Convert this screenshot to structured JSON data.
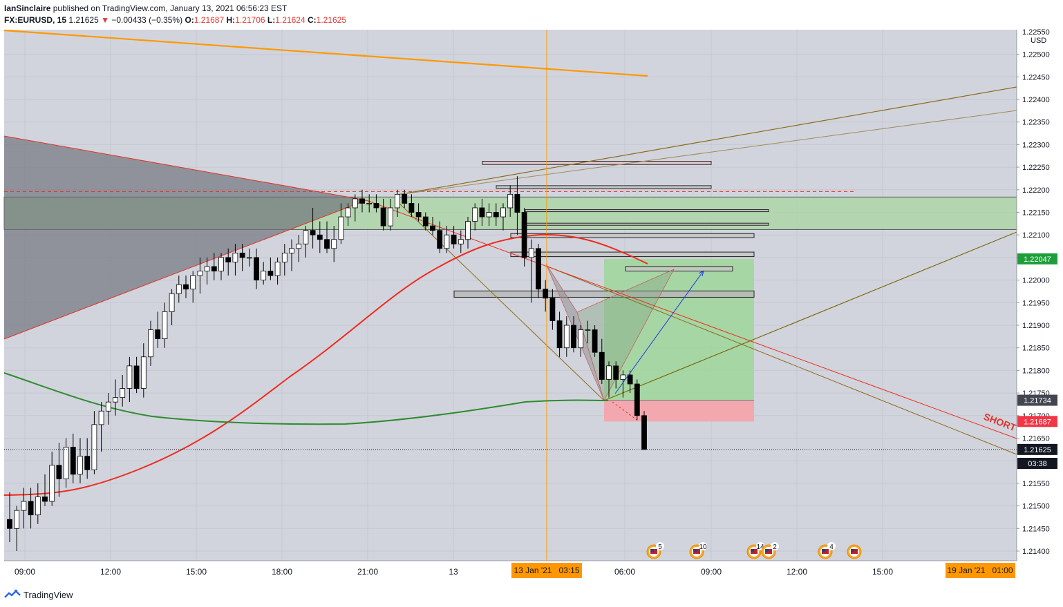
{
  "header": {
    "publisher": "IanSinclaire",
    "published_text": "published on TradingView.com, January 13, 2021 06:56:23 EST",
    "symbol": "FX:EURUSD, 15",
    "last": "1.21625",
    "change_arrow": "▼",
    "change": "−0.00433 (−0.35%)",
    "o_label": "O:",
    "o": "1.21687",
    "h_label": "H:",
    "h": "1.21706",
    "l_label": "L:",
    "l": "1.21624",
    "c_label": "C:",
    "c": "1.21625"
  },
  "footer": {
    "brand": "TradingView",
    "logo_icon": "tradingview-logo-icon"
  },
  "colors": {
    "bg": "#d1d4dc",
    "grid": "#c5c8d0",
    "up": "#ffffff",
    "down": "#000000",
    "ema_fast": "#ef2b1f",
    "ema_slow": "#2e8b2e",
    "ema_long": "#ff9800",
    "accent_orange": "#ff9800",
    "green_zone": "#a8d5a0",
    "red_zone": "#f5a3a8"
  },
  "chart_data": {
    "type": "candlestick",
    "currency": "USD",
    "price_axis_labels": [
      "1.22500",
      "1.22450",
      "1.22400",
      "1.22350",
      "1.22300",
      "1.22250",
      "1.22200",
      "1.22150",
      "1.22100",
      "1.22050",
      "1.22000",
      "1.21950",
      "1.21900",
      "1.21850",
      "1.21800",
      "1.21750",
      "1.21700",
      "1.21650",
      "1.21600",
      "1.21550",
      "1.21500",
      "1.21450",
      "1.21400"
    ],
    "price_axis_top_partial": "1.22550",
    "time_axis_labels": [
      "09:00",
      "12:00",
      "15:00",
      "18:00",
      "21:00",
      "13",
      "06:00",
      "09:00",
      "12:00",
      "15:00"
    ],
    "highlight_time_left": "13 Jan '21   03:15",
    "highlight_time_right": "19 Jan '21   01:00",
    "price_tags": [
      {
        "label": "1.22047",
        "bg": "#1e9e3b"
      },
      {
        "label": "1.21734",
        "bg": "#434651"
      },
      {
        "label": "1.21687",
        "bg": "#f23645"
      },
      {
        "label": "1.21625",
        "bg": "#131722"
      },
      {
        "label": "03:38",
        "bg": "#131722"
      }
    ],
    "annotation_text": "SHORT",
    "event_counts": [
      "5",
      "10",
      "14",
      "2",
      "4"
    ],
    "ema_fast_end": 1.2206,
    "ema_slow_end": 1.2173,
    "ema_long_range": [
      1.2255,
      1.2246
    ],
    "long_position": {
      "entry": 1.21734,
      "target": 1.22047,
      "stop": 1.21687
    },
    "candles": [
      {
        "o": 1.2147,
        "h": 1.2153,
        "l": 1.2142,
        "c": 1.2145
      },
      {
        "o": 1.2145,
        "h": 1.215,
        "l": 1.214,
        "c": 1.2149
      },
      {
        "o": 1.2149,
        "h": 1.2154,
        "l": 1.2145,
        "c": 1.2151
      },
      {
        "o": 1.2151,
        "h": 1.2154,
        "l": 1.2145,
        "c": 1.2148
      },
      {
        "o": 1.2148,
        "h": 1.2155,
        "l": 1.2146,
        "c": 1.2152
      },
      {
        "o": 1.2152,
        "h": 1.2157,
        "l": 1.215,
        "c": 1.2151
      },
      {
        "o": 1.2151,
        "h": 1.2162,
        "l": 1.215,
        "c": 1.2159
      },
      {
        "o": 1.2159,
        "h": 1.2164,
        "l": 1.2152,
        "c": 1.2156
      },
      {
        "o": 1.2156,
        "h": 1.2165,
        "l": 1.2154,
        "c": 1.2163
      },
      {
        "o": 1.2163,
        "h": 1.2166,
        "l": 1.2155,
        "c": 1.2157
      },
      {
        "o": 1.2157,
        "h": 1.2165,
        "l": 1.2155,
        "c": 1.2161
      },
      {
        "o": 1.2161,
        "h": 1.2165,
        "l": 1.2156,
        "c": 1.2158
      },
      {
        "o": 1.2158,
        "h": 1.2171,
        "l": 1.2157,
        "c": 1.2168
      },
      {
        "o": 1.2168,
        "h": 1.2173,
        "l": 1.2162,
        "c": 1.2171
      },
      {
        "o": 1.2171,
        "h": 1.2175,
        "l": 1.2168,
        "c": 1.2173
      },
      {
        "o": 1.2173,
        "h": 1.2178,
        "l": 1.217,
        "c": 1.2174
      },
      {
        "o": 1.2174,
        "h": 1.2179,
        "l": 1.2172,
        "c": 1.2176
      },
      {
        "o": 1.2176,
        "h": 1.2183,
        "l": 1.2173,
        "c": 1.2181
      },
      {
        "o": 1.2181,
        "h": 1.2183,
        "l": 1.2175,
        "c": 1.2176
      },
      {
        "o": 1.2176,
        "h": 1.2186,
        "l": 1.2174,
        "c": 1.2183
      },
      {
        "o": 1.2183,
        "h": 1.2191,
        "l": 1.2181,
        "c": 1.2189
      },
      {
        "o": 1.2189,
        "h": 1.2193,
        "l": 1.2185,
        "c": 1.2187
      },
      {
        "o": 1.2187,
        "h": 1.2195,
        "l": 1.2185,
        "c": 1.2193
      },
      {
        "o": 1.2193,
        "h": 1.2198,
        "l": 1.219,
        "c": 1.2197
      },
      {
        "o": 1.2197,
        "h": 1.2201,
        "l": 1.2195,
        "c": 1.2199
      },
      {
        "o": 1.2199,
        "h": 1.2201,
        "l": 1.2196,
        "c": 1.2198
      },
      {
        "o": 1.2198,
        "h": 1.2202,
        "l": 1.2195,
        "c": 1.2201
      },
      {
        "o": 1.2201,
        "h": 1.2205,
        "l": 1.2197,
        "c": 1.2202
      },
      {
        "o": 1.2202,
        "h": 1.2205,
        "l": 1.2199,
        "c": 1.2203
      },
      {
        "o": 1.2203,
        "h": 1.2206,
        "l": 1.22,
        "c": 1.2202
      },
      {
        "o": 1.2202,
        "h": 1.2206,
        "l": 1.22,
        "c": 1.2205
      },
      {
        "o": 1.2205,
        "h": 1.2207,
        "l": 1.2201,
        "c": 1.2204
      },
      {
        "o": 1.2204,
        "h": 1.2208,
        "l": 1.2201,
        "c": 1.2206
      },
      {
        "o": 1.2206,
        "h": 1.2208,
        "l": 1.2202,
        "c": 1.2205
      },
      {
        "o": 1.2205,
        "h": 1.2207,
        "l": 1.2203,
        "c": 1.2205
      },
      {
        "o": 1.2205,
        "h": 1.2207,
        "l": 1.2198,
        "c": 1.22
      },
      {
        "o": 1.22,
        "h": 1.2204,
        "l": 1.2199,
        "c": 1.2202
      },
      {
        "o": 1.2202,
        "h": 1.2205,
        "l": 1.22,
        "c": 1.2201
      },
      {
        "o": 1.2201,
        "h": 1.2205,
        "l": 1.2199,
        "c": 1.2204
      },
      {
        "o": 1.2204,
        "h": 1.2208,
        "l": 1.2201,
        "c": 1.2206
      },
      {
        "o": 1.2206,
        "h": 1.2209,
        "l": 1.2202,
        "c": 1.2207
      },
      {
        "o": 1.2207,
        "h": 1.221,
        "l": 1.2204,
        "c": 1.2208
      },
      {
        "o": 1.2208,
        "h": 1.2212,
        "l": 1.2205,
        "c": 1.2211
      },
      {
        "o": 1.2211,
        "h": 1.2216,
        "l": 1.2207,
        "c": 1.221
      },
      {
        "o": 1.221,
        "h": 1.2213,
        "l": 1.2206,
        "c": 1.2209
      },
      {
        "o": 1.2209,
        "h": 1.2213,
        "l": 1.2206,
        "c": 1.2207
      },
      {
        "o": 1.2207,
        "h": 1.2212,
        "l": 1.2204,
        "c": 1.2209
      },
      {
        "o": 1.2209,
        "h": 1.2217,
        "l": 1.2208,
        "c": 1.2214
      },
      {
        "o": 1.2214,
        "h": 1.2217,
        "l": 1.2212,
        "c": 1.2216
      },
      {
        "o": 1.2216,
        "h": 1.2219,
        "l": 1.2213,
        "c": 1.2218
      },
      {
        "o": 1.2218,
        "h": 1.222,
        "l": 1.2215,
        "c": 1.2217
      },
      {
        "o": 1.2217,
        "h": 1.2219,
        "l": 1.2215,
        "c": 1.2217
      },
      {
        "o": 1.2217,
        "h": 1.2219,
        "l": 1.2215,
        "c": 1.2216
      },
      {
        "o": 1.2216,
        "h": 1.2218,
        "l": 1.2211,
        "c": 1.2212
      },
      {
        "o": 1.2212,
        "h": 1.2218,
        "l": 1.2211,
        "c": 1.2216
      },
      {
        "o": 1.2216,
        "h": 1.222,
        "l": 1.2214,
        "c": 1.2219
      },
      {
        "o": 1.2219,
        "h": 1.222,
        "l": 1.2216,
        "c": 1.2217
      },
      {
        "o": 1.2217,
        "h": 1.2219,
        "l": 1.2214,
        "c": 1.2215
      },
      {
        "o": 1.2215,
        "h": 1.2217,
        "l": 1.2213,
        "c": 1.2214
      },
      {
        "o": 1.2214,
        "h": 1.2215,
        "l": 1.2211,
        "c": 1.2212
      },
      {
        "o": 1.2212,
        "h": 1.2214,
        "l": 1.221,
        "c": 1.2211
      },
      {
        "o": 1.2211,
        "h": 1.2213,
        "l": 1.2206,
        "c": 1.2207
      },
      {
        "o": 1.2207,
        "h": 1.2212,
        "l": 1.2206,
        "c": 1.221
      },
      {
        "o": 1.221,
        "h": 1.2212,
        "l": 1.2207,
        "c": 1.2208
      },
      {
        "o": 1.2208,
        "h": 1.2211,
        "l": 1.2206,
        "c": 1.2209
      },
      {
        "o": 1.2209,
        "h": 1.2214,
        "l": 1.2207,
        "c": 1.2213
      },
      {
        "o": 1.2213,
        "h": 1.2217,
        "l": 1.2211,
        "c": 1.2216
      },
      {
        "o": 1.2216,
        "h": 1.2218,
        "l": 1.2212,
        "c": 1.2214
      },
      {
        "o": 1.2214,
        "h": 1.2217,
        "l": 1.2212,
        "c": 1.2215
      },
      {
        "o": 1.2215,
        "h": 1.2217,
        "l": 1.2212,
        "c": 1.2214
      },
      {
        "o": 1.2214,
        "h": 1.2217,
        "l": 1.2211,
        "c": 1.2216
      },
      {
        "o": 1.2216,
        "h": 1.2221,
        "l": 1.2214,
        "c": 1.2219
      },
      {
        "o": 1.2219,
        "h": 1.2223,
        "l": 1.221,
        "c": 1.2215
      },
      {
        "o": 1.2215,
        "h": 1.2216,
        "l": 1.2203,
        "c": 1.2205
      },
      {
        "o": 1.2205,
        "h": 1.2209,
        "l": 1.2195,
        "c": 1.2207
      },
      {
        "o": 1.2207,
        "h": 1.2208,
        "l": 1.2196,
        "c": 1.2198
      },
      {
        "o": 1.2198,
        "h": 1.22,
        "l": 1.2193,
        "c": 1.2196
      },
      {
        "o": 1.2196,
        "h": 1.2198,
        "l": 1.2189,
        "c": 1.2191
      },
      {
        "o": 1.2191,
        "h": 1.2193,
        "l": 1.2183,
        "c": 1.2185
      },
      {
        "o": 1.2185,
        "h": 1.2192,
        "l": 1.2183,
        "c": 1.219
      },
      {
        "o": 1.219,
        "h": 1.2192,
        "l": 1.2184,
        "c": 1.2185
      },
      {
        "o": 1.2185,
        "h": 1.219,
        "l": 1.2183,
        "c": 1.2189
      },
      {
        "o": 1.2189,
        "h": 1.2191,
        "l": 1.2186,
        "c": 1.2189
      },
      {
        "o": 1.2189,
        "h": 1.219,
        "l": 1.2183,
        "c": 1.2184
      },
      {
        "o": 1.2184,
        "h": 1.2187,
        "l": 1.2177,
        "c": 1.2178
      },
      {
        "o": 1.2178,
        "h": 1.2182,
        "l": 1.2174,
        "c": 1.2181
      },
      {
        "o": 1.2181,
        "h": 1.2182,
        "l": 1.2176,
        "c": 1.2178
      },
      {
        "o": 1.2178,
        "h": 1.218,
        "l": 1.2174,
        "c": 1.2179
      },
      {
        "o": 1.2179,
        "h": 1.218,
        "l": 1.2175,
        "c": 1.2177
      },
      {
        "o": 1.2177,
        "h": 1.2178,
        "l": 1.2169,
        "c": 1.217
      },
      {
        "o": 1.217,
        "h": 1.2171,
        "l": 1.21624,
        "c": 1.21625
      }
    ]
  }
}
